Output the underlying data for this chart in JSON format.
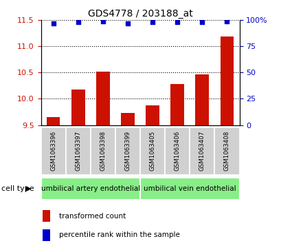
{
  "title": "GDS4778 / 203188_at",
  "samples": [
    "GSM1063396",
    "GSM1063397",
    "GSM1063398",
    "GSM1063399",
    "GSM1063405",
    "GSM1063406",
    "GSM1063407",
    "GSM1063408"
  ],
  "bar_values": [
    9.65,
    10.18,
    10.52,
    9.73,
    9.87,
    10.28,
    10.47,
    11.19
  ],
  "percentile_values": [
    97,
    98,
    99,
    97,
    98,
    98,
    98,
    99
  ],
  "ylim_left": [
    9.5,
    11.5
  ],
  "ylim_right": [
    0,
    100
  ],
  "yticks_left": [
    9.5,
    10.0,
    10.5,
    11.0,
    11.5
  ],
  "yticks_right": [
    0,
    25,
    50,
    75,
    100
  ],
  "bar_color": "#cc1100",
  "dot_color": "#0000cc",
  "cell_groups": [
    {
      "label": "umbilical artery endothelial",
      "start": 0,
      "end": 4,
      "color": "#88ee88"
    },
    {
      "label": "umbilical vein endothelial",
      "start": 4,
      "end": 8,
      "color": "#88ee88"
    }
  ],
  "cell_type_label": "cell type",
  "legend_bar_label": "transformed count",
  "legend_dot_label": "percentile rank within the sample",
  "title_fontsize": 10,
  "tick_fontsize": 8,
  "background_color": "#ffffff",
  "sample_box_color": "#d0d0d0",
  "grid_linestyle": ":",
  "grid_color": "#000000",
  "grid_linewidth": 0.8
}
